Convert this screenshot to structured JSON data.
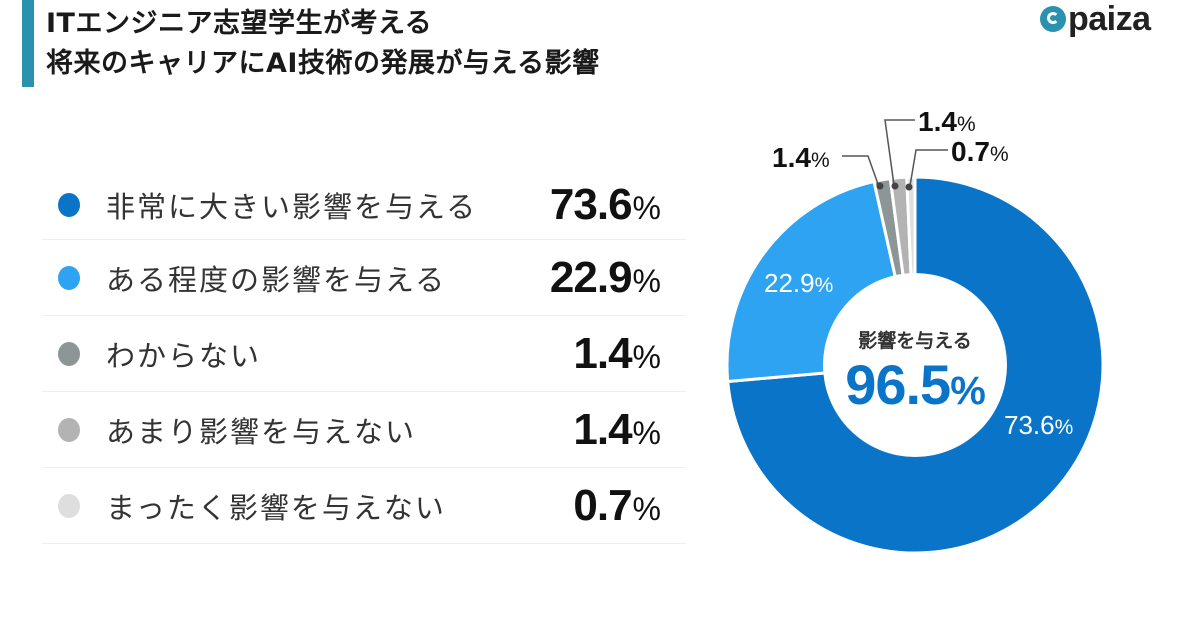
{
  "header": {
    "title_line1": "ITエンジニア志望学生が考える",
    "title_line2": "将来のキャリアにAI技術の発展が与える影響",
    "logo_text": "paiza",
    "accent_color": "#2a92ae"
  },
  "legend": [
    {
      "label": "非常に大きい影響を与える",
      "value": "73.6",
      "unit": "%",
      "color": "#0a74c9"
    },
    {
      "label": "ある程度の影響を与える",
      "value": "22.9",
      "unit": "%",
      "color": "#2ea3f2"
    },
    {
      "label": "わからない",
      "value": "1.4",
      "unit": "%",
      "color": "#8d9696"
    },
    {
      "label": "あまり影響を与えない",
      "value": "1.4",
      "unit": "%",
      "color": "#b3b3b3"
    },
    {
      "label": "まったく影響を与えない",
      "value": "0.7",
      "unit": "%",
      "color": "#dedede"
    }
  ],
  "donut": {
    "center_label": "影響を与える",
    "center_value": "96.5",
    "center_unit": "%",
    "slice_labels": {
      "s1": "73.6",
      "s2": "22.9",
      "s3": "1.4",
      "s4": "1.4",
      "s5": "0.7",
      "unit": "%"
    }
  },
  "chart_data": {
    "type": "pie",
    "subtype": "donut",
    "title": "ITエンジニア志望学生が考える 将来のキャリアにAI技術の発展が与える影響",
    "categories": [
      "非常に大きい影響を与える",
      "ある程度の影響を与える",
      "わからない",
      "あまり影響を与えない",
      "まったく影響を与えない"
    ],
    "values": [
      73.6,
      22.9,
      1.4,
      1.4,
      0.7
    ],
    "colors": [
      "#0a74c9",
      "#2ea3f2",
      "#8d9696",
      "#b3b3b3",
      "#dedede"
    ],
    "center_annotation": {
      "label": "影響を与える",
      "value": 96.5
    },
    "start_angle": "12 o'clock, clockwise",
    "legend_position": "left"
  }
}
